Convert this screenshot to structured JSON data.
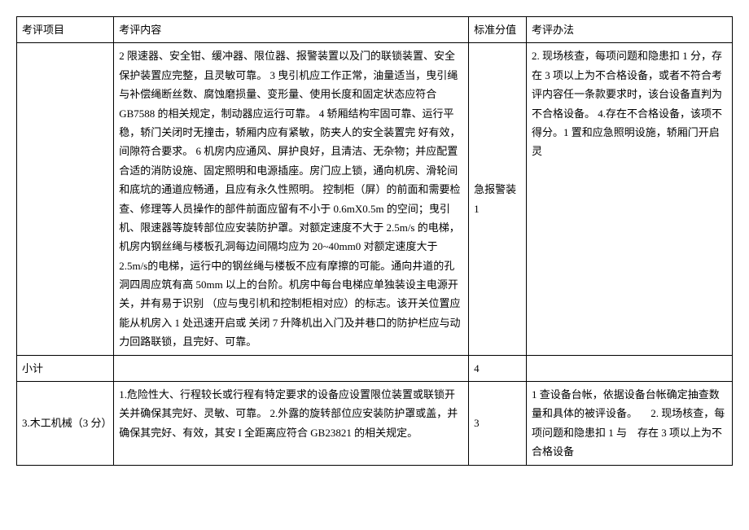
{
  "headers": {
    "c1": "考评项目",
    "c2": "考评内容",
    "c3": "标准分值",
    "c4": "考评办法"
  },
  "row1": {
    "c2": "2 限速器、安全钳、缓冲器、限位器、报警装置以及门的联锁装置、安全保护装置应完整，且灵敏可靠。\n3 曳引机应工作正常，油量适当，曳引绳与补偿绳断丝数、腐蚀磨损量、变形量、使用长度和固定状态应符合 GB7588 的相关规定，制动器应运行可靠。\n4 轿厢结构牢固可靠、运行平稳，轿门关闭时无撞击，轿厢内应有紧敏，防夹人的安全装置完\n好有效，间隙符合要求。\n6 机房内应通风、屏护良好，且清洁、无杂物；并应配置合适的消防设施、固定照明和电源插座。房门应上锁，通向机房、滑轮间和底坑的通道应畅通，且应有永久性照明。\n控制柜（屏）的前面和需要检查、修理等人员操作的部件前面应留有不小于 0.6mX0.5m 的空间；曳引机、限速器等旋转部位应安装防护罩。对额定速度不大于 2.5m/s 的电梯，机房内钢丝绳与楼板孔洞每边间隔均应为 20~40mm0 对额定速度大于 2.5m/s的电梯，运行中的钢丝绳与楼板不应有摩擦的可能。通向井道的孔洞四周应筑有高 50mm 以上的台阶。机房中每台电梯应单独装设主电源开关，并有易于识别\n（应与曳引机和控制柜相对应）的标志。该开关位置应能从机房入 1 处迅速开启或\n关闭\n7 升降机出入门及并巷口的防护栏应与动力回路联锁，且完好、可靠。",
    "c3": "急报警装\n\n\n\n\n\n\n\n\n\n1",
    "c4": "2. 现场核查，每项问题和隐患扣 1 分，存在 3 项以上为不合格设备，或者不符合考评内容任一条款要求时，该台设备直判为不合格设备。\n4.存在不合格设备，该项不得分。1\n置和应急照明设施，轿厢门开启灵"
  },
  "subtotal": {
    "label": "小计",
    "score": "4"
  },
  "row3": {
    "c1": "3.木工机械（3 分）",
    "c2": "1.危险性大、行程较长或行程有特定要求的设备应设置限位装置或联锁开关并确保其完好、灵敏、可靠。\n\n2.外露的旋转部位应安装防护罩或盖，并确保其完好、有效，其安 I 全距离应符合 GB23821 的相关规定。",
    "c3": "3",
    "c4": "1 查设备台帐，依据设备台帐确定抽查数量和具体的被评设备。\n　2. 现场核查，每项问题和隐患扣 1\n与　存在 3 项以上为不合格设备"
  }
}
